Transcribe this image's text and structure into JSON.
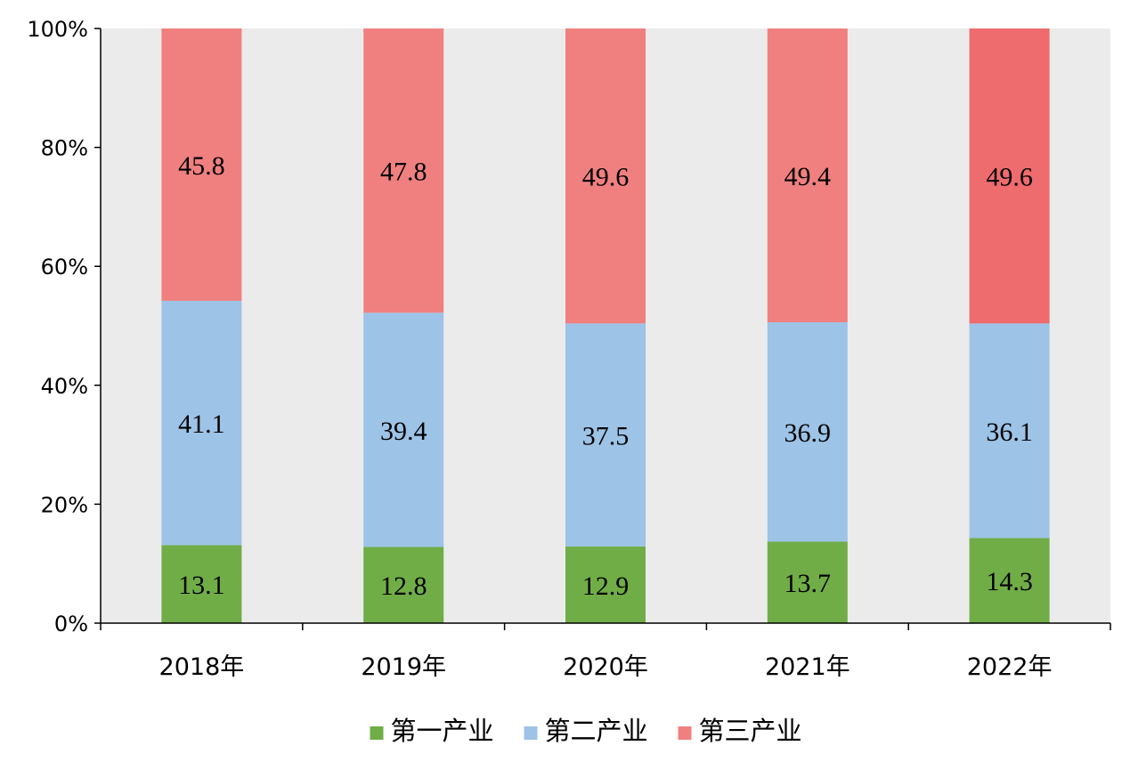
{
  "chart_data": {
    "type": "bar",
    "stacked": true,
    "percent_stacked": true,
    "title": "",
    "xlabel": "",
    "ylabel": "",
    "ylim": [
      0,
      100
    ],
    "yticks": [
      "0%",
      "20%",
      "40%",
      "60%",
      "80%",
      "100%"
    ],
    "categories": [
      "2018年",
      "2019年",
      "2020年",
      "2021年",
      "2022年"
    ],
    "series": [
      {
        "name": "第一产业",
        "color": "#70ad47",
        "values": [
          13.1,
          12.8,
          12.9,
          13.7,
          14.3
        ]
      },
      {
        "name": "第二产业",
        "color": "#9dc3e6",
        "values": [
          41.1,
          39.4,
          37.5,
          36.9,
          36.1
        ]
      },
      {
        "name": "第三产业",
        "color": "#f08080",
        "highlight_color": "#ee6b6e",
        "values": [
          45.8,
          47.8,
          49.6,
          49.4,
          49.6
        ]
      }
    ],
    "grid": false,
    "plot_background": "#ebebeb",
    "legend_position": "bottom"
  }
}
